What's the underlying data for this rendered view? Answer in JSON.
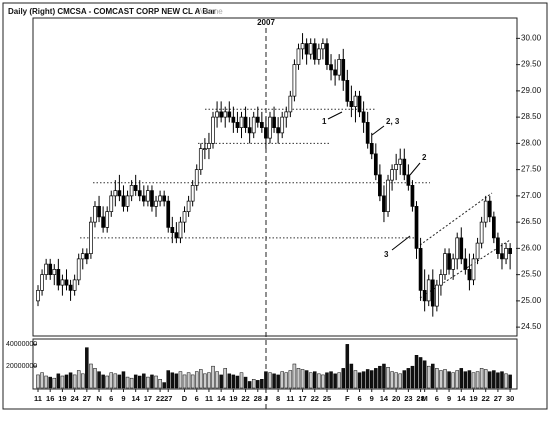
{
  "chart_data": {
    "type": "candlestick",
    "title": "Daily (Right) CMCSA - COMCAST CORP NEW CL A  Bar",
    "volume_label": "Volume",
    "categories": [
      "11",
      null,
      null,
      "16",
      null,
      null,
      "19",
      null,
      null,
      "24",
      null,
      null,
      "27",
      null,
      null,
      "N",
      null,
      null,
      "6",
      null,
      null,
      "9",
      null,
      null,
      "14",
      null,
      null,
      "17",
      null,
      null,
      "22",
      null,
      "27",
      null,
      null,
      null,
      "D",
      null,
      null,
      "6",
      null,
      null,
      "11",
      null,
      null,
      "14",
      null,
      null,
      "19",
      null,
      null,
      "22",
      null,
      null,
      "28",
      null,
      "J",
      null,
      null,
      "8",
      null,
      null,
      "11",
      null,
      null,
      "17",
      null,
      null,
      "22",
      null,
      null,
      "25",
      null,
      null,
      null,
      null,
      "F",
      null,
      null,
      "6",
      null,
      null,
      "9",
      null,
      null,
      "14",
      null,
      null,
      "20",
      null,
      null,
      "23",
      null,
      null,
      "28",
      "M",
      null,
      null,
      "6",
      null,
      null,
      "9",
      null,
      null,
      "14",
      null,
      null,
      "19",
      null,
      null,
      "22",
      null,
      null,
      "27",
      null,
      null,
      "30"
    ],
    "open": [
      25.0,
      25.2,
      25.5,
      25.7,
      25.5,
      25.6,
      25.3,
      25.4,
      25.3,
      25.2,
      25.4,
      25.8,
      25.9,
      25.9,
      26.5,
      26.8,
      26.6,
      26.4,
      26.7,
      27.0,
      27.1,
      27.0,
      26.8,
      27.0,
      27.2,
      27.1,
      27.0,
      26.9,
      27.1,
      26.8,
      26.9,
      27.0,
      26.9,
      26.4,
      26.3,
      26.2,
      26.5,
      26.7,
      26.9,
      27.2,
      27.5,
      27.9,
      27.9,
      28.0,
      28.5,
      28.6,
      28.5,
      28.6,
      28.5,
      28.4,
      28.3,
      28.5,
      28.3,
      28.2,
      28.5,
      28.4,
      28.3,
      28.1,
      28.5,
      28.3,
      28.2,
      28.5,
      28.6,
      28.9,
      29.5,
      29.8,
      29.9,
      29.7,
      29.9,
      29.6,
      29.8,
      29.9,
      29.5,
      29.4,
      29.3,
      29.6,
      29.2,
      28.8,
      28.7,
      28.9,
      28.6,
      28.4,
      28.0,
      27.8,
      27.4,
      27.0,
      26.7,
      27.3,
      27.5,
      27.6,
      27.7,
      27.4,
      27.2,
      26.8,
      26.0,
      25.2,
      25.0,
      25.4,
      24.9,
      25.3,
      25.5,
      25.9,
      25.6,
      25.8,
      26.2,
      25.8,
      25.6,
      25.4,
      25.8,
      26.1,
      26.5,
      26.9,
      26.6,
      26.2,
      25.9,
      25.8,
      26.0
    ],
    "high": [
      25.3,
      25.6,
      25.8,
      25.8,
      25.7,
      25.8,
      25.5,
      25.6,
      25.4,
      25.5,
      25.9,
      26.0,
      26.0,
      26.6,
      26.9,
      27.0,
      26.8,
      26.8,
      27.1,
      27.3,
      27.4,
      27.2,
      27.1,
      27.3,
      27.4,
      27.3,
      27.2,
      27.2,
      27.2,
      27.0,
      27.1,
      27.1,
      27.0,
      26.6,
      26.5,
      26.6,
      26.8,
      27.0,
      27.3,
      27.6,
      28.0,
      28.1,
      28.2,
      28.6,
      28.8,
      28.8,
      28.7,
      28.8,
      28.7,
      28.6,
      28.6,
      28.7,
      28.5,
      28.6,
      28.7,
      28.6,
      28.5,
      28.6,
      28.7,
      28.5,
      28.6,
      28.7,
      29.0,
      29.6,
      29.9,
      30.1,
      30.0,
      30.0,
      30.0,
      29.9,
      30.0,
      30.0,
      29.7,
      29.6,
      29.7,
      29.8,
      29.4,
      29.1,
      29.0,
      29.0,
      28.8,
      28.6,
      28.2,
      28.0,
      27.6,
      27.2,
      27.4,
      27.6,
      27.8,
      27.9,
      27.9,
      27.6,
      27.3,
      26.9,
      26.2,
      25.6,
      25.5,
      25.6,
      25.4,
      25.6,
      26.0,
      26.0,
      25.9,
      26.3,
      26.4,
      26.0,
      25.9,
      25.9,
      26.2,
      26.6,
      27.0,
      27.0,
      26.7,
      26.3,
      26.1,
      26.1,
      26.1
    ],
    "low": [
      24.9,
      25.1,
      25.4,
      25.4,
      25.3,
      25.2,
      25.1,
      25.2,
      25.0,
      25.1,
      25.3,
      25.6,
      25.7,
      25.8,
      26.4,
      26.5,
      26.3,
      26.3,
      26.6,
      26.8,
      26.9,
      26.7,
      26.7,
      26.9,
      27.0,
      26.9,
      26.8,
      26.8,
      26.7,
      26.6,
      26.8,
      26.8,
      26.3,
      26.1,
      26.1,
      26.1,
      26.3,
      26.6,
      26.8,
      27.1,
      27.4,
      27.7,
      27.7,
      27.9,
      28.3,
      28.4,
      28.3,
      28.4,
      28.2,
      28.2,
      28.1,
      28.2,
      28.0,
      28.1,
      28.3,
      28.2,
      27.9,
      28.0,
      28.2,
      28.0,
      28.1,
      28.3,
      28.5,
      28.8,
      29.4,
      29.6,
      29.5,
      29.6,
      29.5,
      29.5,
      29.6,
      29.4,
      29.2,
      29.1,
      29.2,
      29.0,
      28.7,
      28.5,
      28.4,
      28.5,
      28.2,
      27.9,
      27.7,
      27.3,
      26.9,
      26.5,
      26.6,
      27.1,
      27.3,
      27.4,
      27.3,
      27.1,
      26.7,
      25.8,
      25.0,
      24.8,
      24.9,
      24.7,
      24.8,
      25.1,
      25.4,
      25.5,
      25.4,
      25.6,
      25.7,
      25.5,
      25.2,
      25.3,
      25.7,
      26.0,
      26.4,
      26.5,
      26.1,
      25.8,
      25.6,
      25.7,
      25.6
    ],
    "close": [
      25.2,
      25.5,
      25.7,
      25.5,
      25.6,
      25.3,
      25.4,
      25.3,
      25.2,
      25.4,
      25.8,
      25.9,
      25.8,
      26.5,
      26.8,
      26.6,
      26.4,
      26.7,
      27.0,
      27.1,
      27.0,
      26.8,
      27.0,
      27.2,
      27.1,
      27.0,
      26.9,
      27.1,
      26.8,
      26.9,
      27.0,
      26.9,
      26.4,
      26.3,
      26.2,
      26.5,
      26.7,
      26.9,
      27.2,
      27.5,
      27.9,
      27.9,
      28.0,
      28.5,
      28.6,
      28.5,
      28.6,
      28.5,
      28.4,
      28.3,
      28.5,
      28.3,
      28.2,
      28.5,
      28.4,
      28.3,
      28.1,
      28.5,
      28.3,
      28.2,
      28.5,
      28.6,
      28.9,
      29.5,
      29.8,
      29.9,
      29.7,
      29.9,
      29.6,
      29.8,
      29.9,
      29.5,
      29.4,
      29.3,
      29.6,
      29.2,
      28.8,
      28.7,
      28.9,
      28.6,
      28.4,
      28.0,
      27.8,
      27.4,
      27.0,
      26.7,
      27.3,
      27.5,
      27.6,
      27.7,
      27.4,
      27.2,
      26.8,
      26.0,
      25.2,
      25.0,
      25.4,
      24.9,
      25.3,
      25.5,
      25.9,
      25.6,
      25.8,
      26.2,
      25.8,
      25.6,
      25.4,
      25.8,
      26.1,
      26.5,
      26.9,
      26.6,
      26.2,
      25.9,
      25.8,
      26.0,
      25.9
    ],
    "volume": [
      12000000,
      14000000,
      11000000,
      10000000,
      9000000,
      13000000,
      11000000,
      12000000,
      14000000,
      12000000,
      16000000,
      13000000,
      37000000,
      22000000,
      18000000,
      15000000,
      12000000,
      11000000,
      14000000,
      13000000,
      12000000,
      15000000,
      10000000,
      9000000,
      12000000,
      11000000,
      13000000,
      10000000,
      12000000,
      11000000,
      8000000,
      5000000,
      16000000,
      14000000,
      13000000,
      15000000,
      12000000,
      14000000,
      12000000,
      15000000,
      17000000,
      13000000,
      14000000,
      20000000,
      15000000,
      12000000,
      18000000,
      13000000,
      12000000,
      11000000,
      14000000,
      10000000,
      6000000,
      8000000,
      7000000,
      8000000,
      15000000,
      14000000,
      13000000,
      12000000,
      15000000,
      14000000,
      16000000,
      22000000,
      18000000,
      17000000,
      16000000,
      14000000,
      15000000,
      13000000,
      12000000,
      14000000,
      15000000,
      13000000,
      14000000,
      18000000,
      40000000,
      22000000,
      16000000,
      14000000,
      15000000,
      17000000,
      16000000,
      18000000,
      20000000,
      22000000,
      19000000,
      15000000,
      14000000,
      13000000,
      16000000,
      18000000,
      20000000,
      30000000,
      28000000,
      25000000,
      20000000,
      22000000,
      18000000,
      16000000,
      17000000,
      15000000,
      14000000,
      16000000,
      18000000,
      15000000,
      16000000,
      14000000,
      15000000,
      18000000,
      17000000,
      15000000,
      16000000,
      14000000,
      15000000,
      13000000,
      12000000
    ],
    "ylim": [
      24.35,
      30.35
    ],
    "yticks": [
      {
        "value": 24.5,
        "label": "24.50"
      },
      {
        "value": 25,
        "label": "25.00"
      },
      {
        "value": 25.5,
        "label": "25.50"
      },
      {
        "value": 26,
        "label": "26.00"
      },
      {
        "value": 26.5,
        "label": "26.50"
      },
      {
        "value": 27,
        "label": "27.00"
      },
      {
        "value": 27.5,
        "label": "27.50"
      },
      {
        "value": 28,
        "label": "28.00"
      },
      {
        "value": 28.5,
        "label": "28.50"
      },
      {
        "value": 29,
        "label": "29.00"
      },
      {
        "value": 29.5,
        "label": "29.50"
      },
      {
        "value": 30,
        "label": "30.00"
      }
    ],
    "vlim": [
      0,
      44000000
    ],
    "vticks": [
      20000000,
      40000000
    ],
    "levels": [
      28.65,
      28.0,
      27.25,
      26.2
    ],
    "annotations": [
      "2007",
      "1",
      "2, 3",
      "2",
      "3"
    ]
  }
}
